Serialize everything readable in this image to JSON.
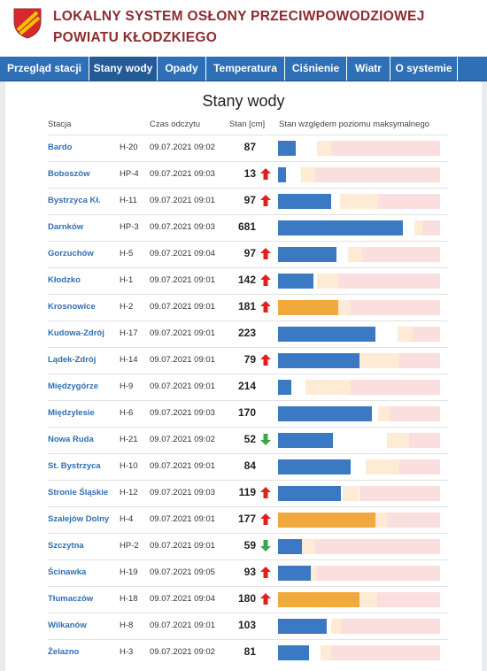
{
  "header": {
    "title_lines": [
      "LOKALNY SYSTEM OSŁONY PRZECIWPOWODZIOWEJ",
      "POWIATU KŁODZKIEGO"
    ]
  },
  "nav": [
    "Przegląd stacji",
    "Stany wody",
    "Opady",
    "Temperatura",
    "Ciśnienie",
    "Wiatr",
    "O systemie"
  ],
  "active_nav": 1,
  "table": {
    "title": "Stany wody",
    "columns": [
      "Stacja",
      "Czas odczytu",
      "Stan [cm]",
      "Stan względem poziomu maksymalnego"
    ],
    "rows": [
      {
        "station": "Bardo",
        "code": "H-20",
        "time": "09.07.2021 09:02",
        "level": 87,
        "trend": null,
        "color": "#3b7ac2",
        "bar": [
          11,
          24,
          33
        ]
      },
      {
        "station": "Boboszów",
        "code": "HP-4",
        "time": "09.07.2021 09:03",
        "level": 13,
        "trend": "up",
        "color": "#3b7ac2",
        "bar": [
          5,
          14,
          23
        ]
      },
      {
        "station": "Bystrzyca Kł.",
        "code": "H-11",
        "time": "09.07.2021 09:01",
        "level": 97,
        "trend": "up",
        "color": "#3b7ac2",
        "bar": [
          33,
          38,
          62
        ]
      },
      {
        "station": "Darnków",
        "code": "HP-3",
        "time": "09.07.2021 09:03",
        "level": 681,
        "trend": null,
        "color": "#3b7ac2",
        "bar": [
          77,
          84,
          89
        ]
      },
      {
        "station": "Gorzuchów",
        "code": "H-5",
        "time": "09.07.2021 09:04",
        "level": 97,
        "trend": "up",
        "color": "#3b7ac2",
        "bar": [
          36,
          43,
          52
        ]
      },
      {
        "station": "Kłodzko",
        "code": "H-1",
        "time": "09.07.2021 09:01",
        "level": 142,
        "trend": "up",
        "color": "#3b7ac2",
        "bar": [
          22,
          24,
          37
        ]
      },
      {
        "station": "Krosnowice",
        "code": "H-2",
        "time": "09.07.2021 09:01",
        "level": 181,
        "trend": "up",
        "color": "#f0a93c",
        "bar": [
          37,
          37,
          45
        ]
      },
      {
        "station": "Kudowa-Zdrój",
        "code": "H-17",
        "time": "09.07.2021 09:01",
        "level": 223,
        "trend": null,
        "color": "#3b7ac2",
        "bar": [
          60,
          74,
          83
        ]
      },
      {
        "station": "Lądek-Zdrój",
        "code": "H-14",
        "time": "09.07.2021 09:01",
        "level": 79,
        "trend": "up",
        "color": "#3b7ac2",
        "bar": [
          50,
          50,
          75
        ]
      },
      {
        "station": "Międzygórze",
        "code": "H-9",
        "time": "09.07.2021 09:01",
        "level": 214,
        "trend": null,
        "color": "#3b7ac2",
        "bar": [
          8,
          17,
          45
        ]
      },
      {
        "station": "Międzylesie",
        "code": "H-6",
        "time": "09.07.2021 09:03",
        "level": 170,
        "trend": null,
        "color": "#3b7ac2",
        "bar": [
          58,
          62,
          69
        ]
      },
      {
        "station": "Nowa Ruda",
        "code": "H-21",
        "time": "09.07.2021 09:02",
        "level": 52,
        "trend": "down",
        "color": "#3b7ac2",
        "bar": [
          34,
          67,
          81
        ]
      },
      {
        "station": "St. Bystrzyca",
        "code": "H-10",
        "time": "09.07.2021 09:01",
        "level": 84,
        "trend": null,
        "color": "#3b7ac2",
        "bar": [
          45,
          54,
          75
        ]
      },
      {
        "station": "Stronie Śląskie",
        "code": "H-12",
        "time": "09.07.2021 09:03",
        "level": 119,
        "trend": "up",
        "color": "#3b7ac2",
        "bar": [
          39,
          40,
          50
        ]
      },
      {
        "station": "Szalejów Dolny",
        "code": "H-4",
        "time": "09.07.2021 09:01",
        "level": 177,
        "trend": "up",
        "color": "#f0a93c",
        "bar": [
          60,
          60,
          67
        ]
      },
      {
        "station": "Szczytna",
        "code": "HP-2",
        "time": "09.07.2021 09:01",
        "level": 59,
        "trend": "down",
        "color": "#3b7ac2",
        "bar": [
          15,
          15,
          23
        ]
      },
      {
        "station": "Ścinawka",
        "code": "H-19",
        "time": "09.07.2021 09:05",
        "level": 93,
        "trend": "up",
        "color": "#3b7ac2",
        "bar": [
          20,
          20,
          24
        ]
      },
      {
        "station": "Tłumaczów",
        "code": "H-18",
        "time": "09.07.2021 09:04",
        "level": 180,
        "trend": "up",
        "color": "#f0a93c",
        "bar": [
          50,
          50,
          61
        ]
      },
      {
        "station": "Wilkanów",
        "code": "H-8",
        "time": "09.07.2021 09:01",
        "level": 103,
        "trend": null,
        "color": "#3b7ac2",
        "bar": [
          30,
          33,
          39
        ]
      },
      {
        "station": "Żelazno",
        "code": "H-3",
        "time": "09.07.2021 09:02",
        "level": 81,
        "trend": null,
        "color": "#3b7ac2",
        "bar": [
          19,
          26,
          33
        ]
      }
    ]
  }
}
